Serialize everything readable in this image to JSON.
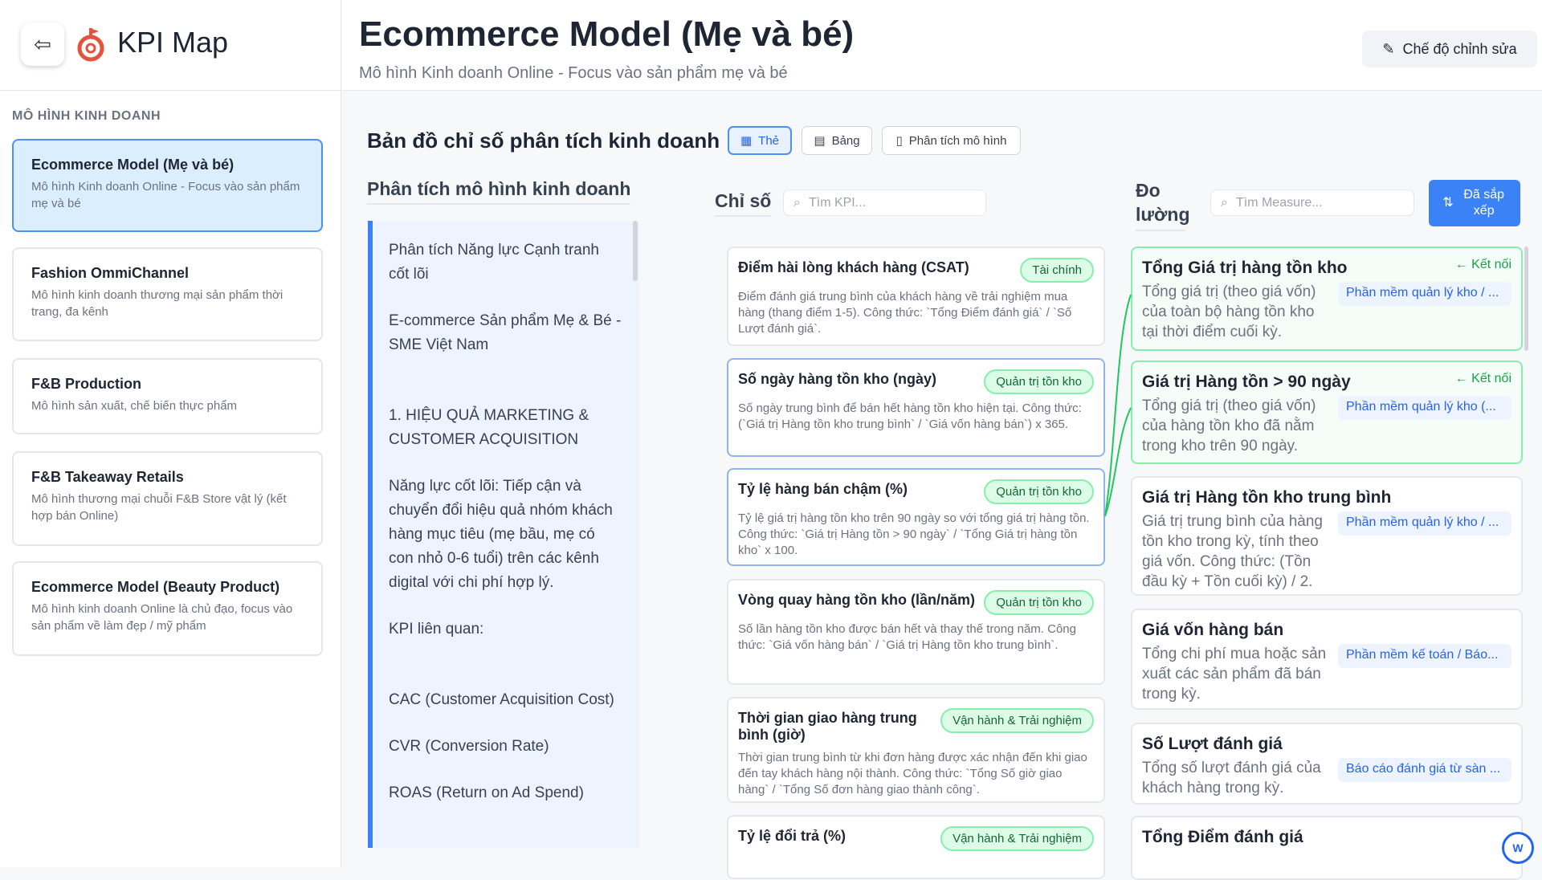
{
  "app": {
    "title": "KPI Map",
    "back_icon": "arrow-left-circle-icon",
    "logo_icon": "target-icon"
  },
  "sidebar": {
    "section_label": "MÔ HÌNH KINH DOANH",
    "items": [
      {
        "title": "Ecommerce Model (Mẹ và bé)",
        "desc": "Mô hình Kinh doanh Online - Focus vào sản phẩm mẹ và bé",
        "active": true
      },
      {
        "title": "Fashion OmmiChannel",
        "desc": "Mô hình kinh doanh thương mại sản phẩm thời trang, đa kênh"
      },
      {
        "title": "F&B Production",
        "desc": "Mô hình sản xuất, chế biến thực phẩm"
      },
      {
        "title": "F&B Takeaway Retails",
        "desc": "Mô hình thương mại chuỗi F&B Store vật lý (kết hợp bán Online)"
      },
      {
        "title": "Ecommerce Model (Beauty Product)",
        "desc": "Mô hình kinh doanh Online là chủ đạo, focus vào sản phẩm về làm đẹp / mỹ phẩm"
      }
    ]
  },
  "header": {
    "title": "Ecommerce Model (Mẹ và bé)",
    "subtitle": "Mô hình Kinh doanh Online - Focus vào sản phẩm mẹ và bé",
    "edit_label": "Chế độ chỉnh sửa"
  },
  "map": {
    "title": "Bản đồ chỉ số phân tích kinh doanh",
    "tabs": [
      {
        "label": "Thẻ",
        "active": true
      },
      {
        "label": "Bảng"
      },
      {
        "label": "Phân tích mô hình"
      }
    ]
  },
  "analysis": {
    "title": "Phân tích mô hình kinh doanh",
    "paragraphs": [
      "Phân tích Năng lực Cạnh tranh cốt lõi",
      "E-commerce Sản phẩm Mẹ & Bé - SME Việt Nam",
      "1. HIỆU QUẢ MARKETING & CUSTOMER ACQUISITION",
      "Năng lực cốt lõi: Tiếp cận và chuyển đổi hiệu quả nhóm khách hàng mục tiêu (mẹ bầu, mẹ có con nhỏ 0-6 tuổi) trên các kênh digital với chi phí hợp lý.",
      "KPI liên quan:",
      "CAC (Customer Acquisition Cost)",
      "CVR (Conversion Rate)",
      "ROAS (Return on Ad Spend)"
    ]
  },
  "kpi": {
    "title": "Chỉ số",
    "search_placeholder": "Tìm KPI...",
    "cards": [
      {
        "title": "Điểm hài lòng khách hàng (CSAT)",
        "tag": "Tài chính",
        "desc": "Điểm đánh giá trung bình của khách hàng về trải nghiệm mua hàng (thang điểm 1-5). Công thức: `Tổng Điểm đánh giá` / `Số Lượt đánh giá`."
      },
      {
        "title": "Số ngày hàng tồn kho (ngày)",
        "tag": "Quản trị tồn kho",
        "desc": "Số ngày trung bình để bán hết hàng tồn kho hiện tại. Công thức: (`Giá trị Hàng tồn kho trung bình` / `Giá vốn hàng bán`) x 365."
      },
      {
        "title": "Tỷ lệ hàng bán chậm (%)",
        "tag": "Quản trị tồn kho",
        "desc": "Tỷ lệ giá trị hàng tồn kho trên 90 ngày so với tổng giá trị hàng tồn. Công thức: `Giá trị Hàng tồn > 90 ngày` / `Tổng Giá trị hàng tồn kho` x 100."
      },
      {
        "title": "Vòng quay hàng tồn kho (lần/năm)",
        "tag": "Quản trị tồn kho",
        "desc": "Số lần hàng tồn kho được bán hết và thay thế trong năm. Công thức: `Giá vốn hàng bán` / `Giá trị Hàng tồn kho trung bình`."
      },
      {
        "title": "Thời gian giao hàng trung bình (giờ)",
        "tag": "Vận hành & Trải nghiệm",
        "desc": "Thời gian trung bình từ khi đơn hàng được xác nhận đến khi giao đến tay khách hàng nội thành. Công thức: `Tổng Số giờ giao hàng` / `Tổng Số đơn hàng giao thành công`."
      },
      {
        "title": "Tỷ lệ đổi trả (%)",
        "tag": "Vận hành & Trải nghiệm",
        "desc": ""
      }
    ]
  },
  "measure": {
    "title": "Đo lường",
    "search_placeholder": "Tìm Measure...",
    "sort_label": "Đã sắp xếp",
    "link_label": "← Kết nối",
    "line_color": "#22c55e",
    "cards": [
      {
        "title": "Tổng Giá trị hàng tồn kho",
        "desc": "Tổng giá trị (theo giá vốn) của toàn bộ hàng tồn kho tại thời điểm cuối kỳ.",
        "source": "Phần mềm quản lý kho / ...",
        "linked": true
      },
      {
        "title": "Giá trị Hàng tồn > 90 ngày",
        "desc": "Tổng giá trị (theo giá vốn) của hàng tồn kho đã nằm trong kho trên 90 ngày.",
        "source": "Phần mềm quản lý kho (...",
        "linked": true
      },
      {
        "title": "Giá trị Hàng tồn kho trung bình",
        "desc": "Giá trị trung bình của hàng tồn kho trong kỳ, tính theo giá vốn. Công thức: (Tồn đầu kỳ + Tồn cuối kỳ) / 2.",
        "source": "Phần mềm quản lý kho / ..."
      },
      {
        "title": "Giá vốn hàng bán",
        "desc": "Tổng chi phí mua hoặc sản xuất các sản phẩm đã bán trong kỳ.",
        "source": "Phần mềm kế toán / Báo..."
      },
      {
        "title": "Số Lượt đánh giá",
        "desc": "Tổng số lượt đánh giá của khách hàng trong kỳ.",
        "source": "Báo cáo đánh giá từ sàn ..."
      },
      {
        "title": "Tổng Điểm đánh giá",
        "desc": "",
        "source": ""
      }
    ]
  },
  "fab": {
    "label": "W"
  }
}
